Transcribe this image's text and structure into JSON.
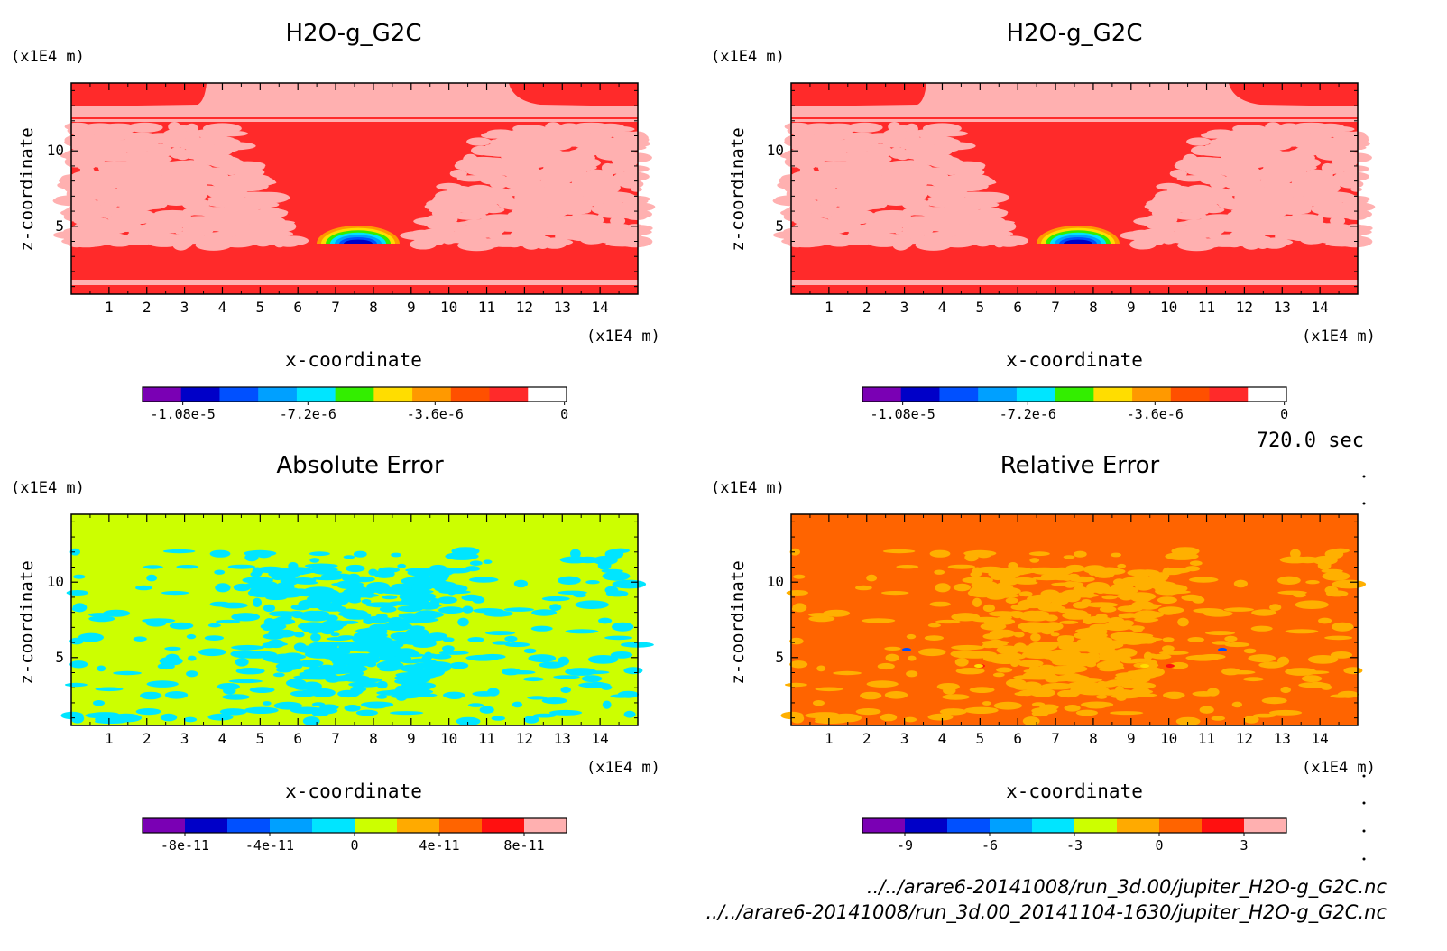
{
  "colors": {
    "h2o_bg": "#ff2a2a",
    "h2o_light": "#ffb0b0",
    "abs_bg": "#ccff00",
    "abs_spot": "#00e5ff",
    "rel_bg": "#ff6400",
    "rel_spot": "#ffb000"
  },
  "panels": [
    {
      "title": "H2O-g_G2C",
      "unit_y": "(x1E4 m)",
      "unit_x": "(x1E4 m)",
      "xlabel": "x-coordinate",
      "ylabel": "z-coordinate",
      "colorbar_labels": [
        "-1.08e-5",
        "-7.2e-6",
        "-3.6e-6",
        "0"
      ]
    },
    {
      "title": "H2O-g_G2C",
      "unit_y": "(x1E4 m)",
      "unit_x": "(x1E4 m)",
      "xlabel": "x-coordinate",
      "ylabel": "z-coordinate",
      "colorbar_labels": [
        "-1.08e-5",
        "-7.2e-6",
        "-3.6e-6",
        "0"
      ]
    },
    {
      "title": "Absolute Error",
      "unit_y": "(x1E4 m)",
      "unit_x": "(x1E4 m)",
      "xlabel": "x-coordinate",
      "ylabel": "z-coordinate",
      "colorbar_labels": [
        "-8e-11",
        "-4e-11",
        "0",
        "4e-11",
        "8e-11"
      ]
    },
    {
      "title": "Relative Error",
      "unit_y": "(x1E4 m)",
      "unit_x": "(x1E4 m)",
      "xlabel": "x-coordinate",
      "ylabel": "z-coordinate",
      "colorbar_labels": [
        "-9",
        "-6",
        "-3",
        "0",
        "3"
      ]
    }
  ],
  "time_label": "720.0 sec",
  "footer": {
    "file1": "../../arare6-20141008/run_3d.00/jupiter_H2O-g_G2C.nc",
    "file2": "../../arare6-20141008/run_3d.00_20141104-1630/jupiter_H2O-g_G2C.nc"
  },
  "chart_data": [
    {
      "type": "heatmap",
      "title": "H2O-g_G2C",
      "xlabel": "x-coordinate",
      "ylabel": "z-coordinate",
      "xlim": [
        0,
        15
      ],
      "ylim": [
        0.5,
        14.5
      ],
      "x_ticks": [
        1,
        2,
        3,
        4,
        5,
        6,
        7,
        8,
        9,
        10,
        11,
        12,
        13,
        14
      ],
      "y_ticks": [
        5,
        10
      ],
      "colorbar": {
        "colors": [
          "#7a00b4",
          "#0000c8",
          "#0050ff",
          "#00a0ff",
          "#00e5ff",
          "#33ee00",
          "#ffdd00",
          "#ff9900",
          "#ff5000",
          "#ff2a2a",
          "#ffffff"
        ],
        "ticks": [
          -1.08e-05,
          -7.2e-06,
          -3.6e-06,
          0
        ]
      }
    },
    {
      "type": "heatmap",
      "title": "H2O-g_G2C",
      "xlabel": "x-coordinate",
      "ylabel": "z-coordinate",
      "xlim": [
        0,
        15
      ],
      "ylim": [
        0.5,
        14.5
      ],
      "x_ticks": [
        1,
        2,
        3,
        4,
        5,
        6,
        7,
        8,
        9,
        10,
        11,
        12,
        13,
        14
      ],
      "y_ticks": [
        5,
        10
      ],
      "colorbar": {
        "colors": [
          "#7a00b4",
          "#0000c8",
          "#0050ff",
          "#00a0ff",
          "#00e5ff",
          "#33ee00",
          "#ffdd00",
          "#ff9900",
          "#ff5000",
          "#ff2a2a",
          "#ffffff"
        ],
        "ticks": [
          -1.08e-05,
          -7.2e-06,
          -3.6e-06,
          0
        ]
      }
    },
    {
      "type": "heatmap",
      "title": "Absolute Error",
      "xlabel": "x-coordinate",
      "ylabel": "z-coordinate",
      "xlim": [
        0,
        15
      ],
      "ylim": [
        0.5,
        14.5
      ],
      "x_ticks": [
        1,
        2,
        3,
        4,
        5,
        6,
        7,
        8,
        9,
        10,
        11,
        12,
        13,
        14
      ],
      "y_ticks": [
        5,
        10
      ],
      "colorbar": {
        "colors": [
          "#7a00b4",
          "#0000c8",
          "#0050ff",
          "#00a0ff",
          "#00e5ff",
          "#ccff00",
          "#ffaa00",
          "#ff6400",
          "#ff1010",
          "#ffb0b0"
        ],
        "ticks": [
          -8e-11,
          -4e-11,
          0,
          4e-11,
          8e-11
        ]
      }
    },
    {
      "type": "heatmap",
      "title": "Relative Error",
      "xlabel": "x-coordinate",
      "ylabel": "z-coordinate",
      "xlim": [
        0,
        15
      ],
      "ylim": [
        0.5,
        14.5
      ],
      "x_ticks": [
        1,
        2,
        3,
        4,
        5,
        6,
        7,
        8,
        9,
        10,
        11,
        12,
        13,
        14
      ],
      "y_ticks": [
        5,
        10
      ],
      "colorbar": {
        "colors": [
          "#7a00b4",
          "#0000c8",
          "#0050ff",
          "#00a0ff",
          "#00e5ff",
          "#ccff00",
          "#ffaa00",
          "#ff6400",
          "#ff1010",
          "#ffb0b0"
        ],
        "ticks": [
          -9,
          -6,
          -3,
          0,
          3
        ]
      }
    }
  ]
}
